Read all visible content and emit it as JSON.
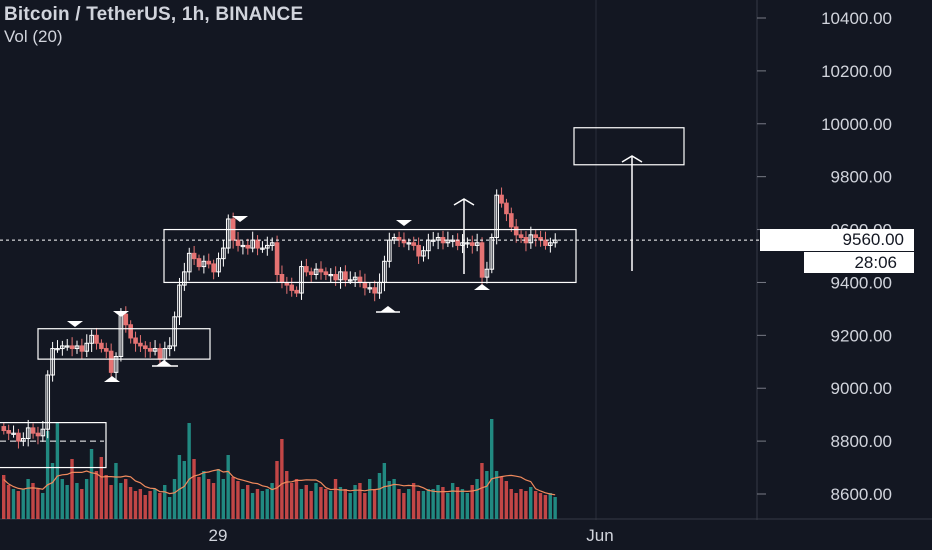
{
  "header": {
    "title": "Bitcoin / TetherUS, 1h, BINANCE",
    "volume_label": "Vol (20)"
  },
  "price_badge": {
    "value": "9560.00",
    "countdown": "28:06"
  },
  "colors": {
    "background": "#131722",
    "up": "#ffffff",
    "down": "#e57373",
    "vol_up": "#26a69a",
    "vol_down": "#ef5350",
    "vol_ma": "#f08a5d",
    "grid": "#2a2e39",
    "text": "#d1d4dc"
  },
  "chart_data": {
    "type": "candlestick",
    "symbol": "BTCUSDT",
    "timeframe": "1h",
    "exchange": "BINANCE",
    "ylim": [
      8520,
      10500
    ],
    "y_ticks": [
      10400,
      10200,
      10000,
      9800,
      9600,
      9400,
      9200,
      9000,
      8800,
      8600
    ],
    "y_tick_labels": [
      "10400.00",
      "10200.00",
      "10000.00",
      "9800.00",
      "9600.00",
      "9400.00",
      "9200.00",
      "9000.00",
      "8800.00",
      "8600.00"
    ],
    "x_tick_labels": [
      "29",
      "Jun"
    ],
    "last_price": 9560,
    "ohlc_closes": [
      8840,
      8830,
      8830,
      8800,
      8810,
      8850,
      8830,
      8820,
      8845,
      9050,
      9150,
      9150,
      9160,
      9160,
      9150,
      9160,
      9140,
      9170,
      9200,
      9170,
      9150,
      9140,
      9060,
      9120,
      9280,
      9240,
      9190,
      9170,
      9160,
      9150,
      9140,
      9150,
      9110,
      9150,
      9160,
      9270,
      9390,
      9440,
      9510,
      9490,
      9460,
      9480,
      9470,
      9440,
      9490,
      9530,
      9640,
      9560,
      9540,
      9540,
      9530,
      9560,
      9530,
      9530,
      9540,
      9550,
      9430,
      9400,
      9390,
      9370,
      9360,
      9460,
      9440,
      9430,
      9450,
      9440,
      9430,
      9430,
      9410,
      9440,
      9410,
      9410,
      9420,
      9400,
      9380,
      9380,
      9360,
      9400,
      9480,
      9560,
      9570,
      9560,
      9550,
      9550,
      9540,
      9500,
      9520,
      9560,
      9560,
      9570,
      9550,
      9560,
      9560,
      9540,
      9550,
      9550,
      9540,
      9550,
      9420,
      9450,
      9570,
      9730,
      9700,
      9660,
      9610,
      9580,
      9570,
      9550,
      9580,
      9570,
      9560,
      9540,
      9550,
      9560
    ],
    "volume_ma": "line",
    "annotations": [
      "range-boxes",
      "up-arrows",
      "target-box",
      "swing-triangles"
    ],
    "grid": true
  }
}
